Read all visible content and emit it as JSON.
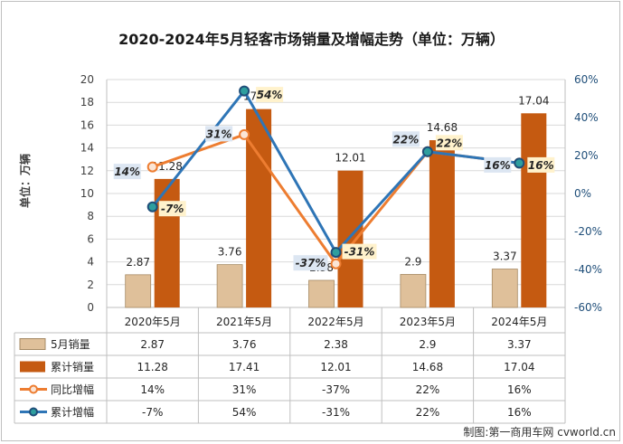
{
  "title": "2020-2024年5月轻客市场销量及增幅走势（单位：万辆）",
  "ylabel": "单位：万辆",
  "source": "制图:第一商用车网 cvworld.cn",
  "chart_data": {
    "type": "bar",
    "categories": [
      "2020年5月",
      "2021年5月",
      "2022年5月",
      "2023年5月",
      "2024年5月"
    ],
    "series": [
      {
        "name": "5月销量",
        "type": "bar",
        "axis": "left",
        "values": [
          2.87,
          3.76,
          2.38,
          2.9,
          3.37
        ],
        "labels": [
          "2.87",
          "3.76",
          "2.38",
          "2.9",
          "3.37"
        ],
        "color": "#dfc09a"
      },
      {
        "name": "累计销量",
        "type": "bar",
        "axis": "left",
        "values": [
          11.28,
          17.41,
          12.01,
          14.68,
          17.04
        ],
        "labels": [
          "11.28",
          "17.41",
          "12.01",
          "14.68",
          "17.04"
        ],
        "color": "#c55a11"
      },
      {
        "name": "同比增幅",
        "type": "line",
        "axis": "right",
        "values": [
          14,
          31,
          -37,
          22,
          16
        ],
        "labels": [
          "14%",
          "31%",
          "-37%",
          "22%",
          "16%"
        ],
        "color": "#ed7d31"
      },
      {
        "name": "累计增幅",
        "type": "line",
        "axis": "right",
        "values": [
          -7,
          54,
          -31,
          22,
          16
        ],
        "labels": [
          "-7%",
          "54%",
          "-31%",
          "22%",
          "16%"
        ],
        "color": "#2e75b6"
      }
    ],
    "ylim_left": [
      0,
      20
    ],
    "yticks_left": [
      "0",
      "2",
      "4",
      "6",
      "8",
      "10",
      "12",
      "14",
      "16",
      "18",
      "20"
    ],
    "ylim_right": [
      -60,
      60
    ],
    "yticks_right": [
      "-60%",
      "-40%",
      "-20%",
      "0%",
      "20%",
      "40%",
      "60%"
    ],
    "grid": true,
    "legend_placement": "data table below chart",
    "table_rows": [
      {
        "label": "5月销量",
        "cells": [
          "2.87",
          "3.76",
          "2.38",
          "2.9",
          "3.37"
        ]
      },
      {
        "label": "累计销量",
        "cells": [
          "11.28",
          "17.41",
          "12.01",
          "14.68",
          "17.04"
        ]
      },
      {
        "label": "同比增幅",
        "cells": [
          "14%",
          "31%",
          "-37%",
          "22%",
          "16%"
        ]
      },
      {
        "label": "累计增幅",
        "cells": [
          "-7%",
          "54%",
          "-31%",
          "22%",
          "16%"
        ]
      }
    ]
  }
}
